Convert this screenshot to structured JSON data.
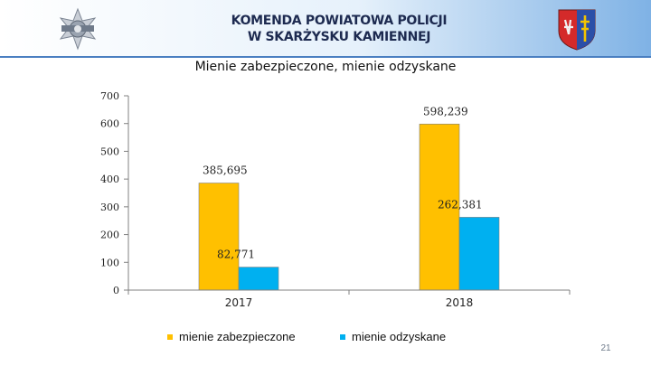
{
  "header": {
    "org_line1": "KOMENDA POWIATOWA POLICJI",
    "org_line2": "W SKARŻYSKU KAMIENNEJ"
  },
  "slide": {
    "number": "21"
  },
  "colors": {
    "series1": "#ffc000",
    "series2": "#00b0f0",
    "header_accent": "#4a7fc1"
  },
  "chart_data": {
    "type": "bar",
    "title": "Mienie zabezpieczone, mienie odzyskane",
    "categories": [
      "2017",
      "2018"
    ],
    "series": [
      {
        "name": "mienie zabezpieczone",
        "values": [
          385.695,
          598.239
        ],
        "labels": [
          "385,695",
          "598,239"
        ],
        "color": "#ffc000"
      },
      {
        "name": "mienie  odzyskane",
        "values": [
          82.771,
          262.381
        ],
        "labels": [
          "82,771",
          "262,381"
        ],
        "color": "#00b0f0"
      }
    ],
    "ylim": [
      0,
      700
    ],
    "yticks": [
      "0",
      "100",
      "200",
      "300",
      "400",
      "500",
      "600",
      "700"
    ],
    "xlabel": "",
    "ylabel": "",
    "grid": false,
    "legend_position": "bottom"
  }
}
